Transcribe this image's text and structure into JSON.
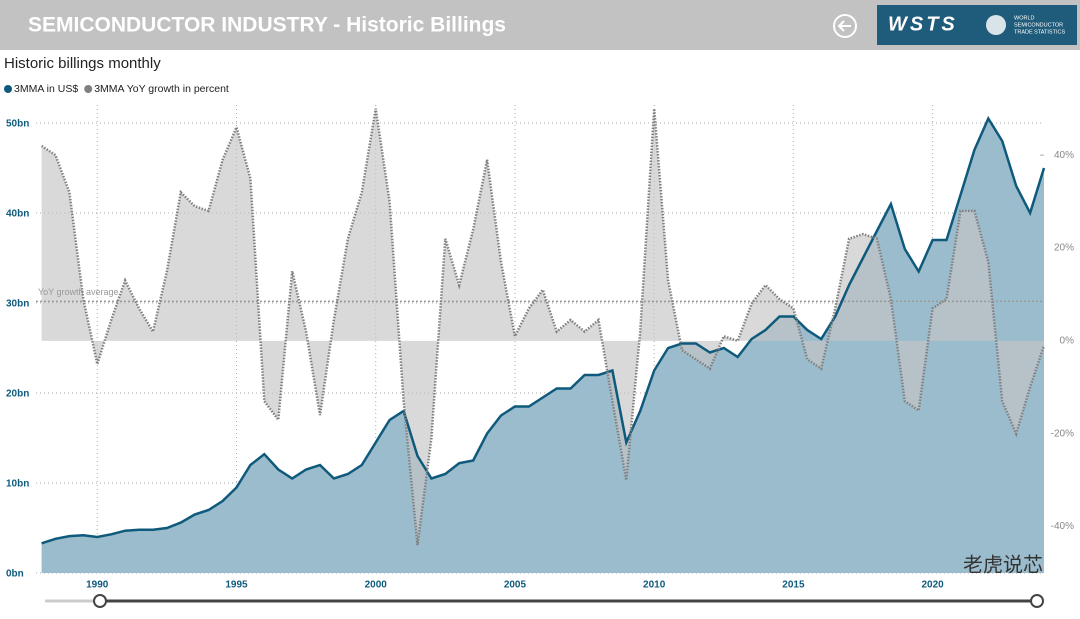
{
  "header": {
    "title": "SEMICONDUCTOR INDUSTRY - Historic Billings",
    "logo": "WSTS",
    "logo_lines": [
      "WORLD",
      "SEMICONDUCTOR",
      "TRADE STATISTICS"
    ]
  },
  "watermark": "老虎说芯",
  "chart_data": {
    "type": "area",
    "title": "Historic billings monthly",
    "x": [
      1988,
      1988.5,
      1989,
      1989.5,
      1990,
      1990.5,
      1991,
      1991.5,
      1992,
      1992.5,
      1993,
      1993.5,
      1994,
      1994.5,
      1995,
      1995.5,
      1996,
      1996.5,
      1997,
      1997.5,
      1998,
      1998.5,
      1999,
      1999.5,
      2000,
      2000.5,
      2001,
      2001.5,
      2002,
      2002.5,
      2003,
      2003.5,
      2004,
      2004.5,
      2005,
      2005.5,
      2006,
      2006.5,
      2007,
      2007.5,
      2008,
      2008.5,
      2009,
      2009.5,
      2010,
      2010.5,
      2011,
      2011.5,
      2012,
      2012.5,
      2013,
      2013.5,
      2014,
      2014.5,
      2015,
      2015.5,
      2016,
      2016.5,
      2017,
      2017.5,
      2018,
      2018.5,
      2019,
      2019.5,
      2020,
      2020.5,
      2021,
      2021.5,
      2022,
      2022.5,
      2023,
      2023.5,
      2024
    ],
    "series": [
      {
        "name": "3MMA in US$",
        "color": "#0f5a7c",
        "fill": "#9bbccc",
        "values": [
          3.3,
          3.8,
          4.1,
          4.2,
          4.0,
          4.3,
          4.7,
          4.8,
          4.8,
          5.0,
          5.6,
          6.5,
          7.0,
          8.0,
          9.5,
          12,
          13.2,
          11.5,
          10.5,
          11.5,
          12,
          10.5,
          11,
          12,
          14.5,
          17,
          18,
          13,
          10.5,
          11,
          12.2,
          12.5,
          15.5,
          17.5,
          18.5,
          18.5,
          19.5,
          20.5,
          20.5,
          22,
          22,
          22.5,
          14.5,
          18,
          22.5,
          25,
          25.5,
          25.5,
          24.5,
          25,
          24,
          26,
          27,
          28.5,
          28.5,
          27,
          26,
          28.5,
          32,
          35,
          38,
          41,
          36,
          33.5,
          37,
          37,
          42,
          47,
          50.5,
          48,
          43,
          40,
          45
        ]
      },
      {
        "name": "3MMA YoY growth in percent",
        "color": "#808080",
        "fill": "#c4c4c4",
        "axis": "y2",
        "values": [
          42,
          40,
          32,
          9,
          -5,
          4.5,
          13,
          7,
          2,
          15,
          32,
          29,
          28,
          39,
          46,
          35,
          -13,
          -17,
          15,
          2,
          -16,
          4.5,
          22,
          32,
          50,
          30,
          -13,
          -44,
          -21,
          22,
          12,
          24,
          39,
          17,
          1,
          7,
          11,
          2,
          4.5,
          2,
          4.5,
          -13,
          -30,
          2,
          50,
          13,
          -2,
          -4,
          -6,
          1,
          0,
          8,
          12,
          9,
          7,
          -4,
          -6,
          7,
          22,
          23,
          22,
          9,
          -13,
          -15,
          7,
          9,
          28,
          28,
          17,
          -13,
          -20,
          -10,
          -1
        ]
      }
    ],
    "xlim": [
      1987.8,
      2024
    ],
    "xticks": [
      1990,
      1995,
      2000,
      2005,
      2010,
      2015,
      2020
    ],
    "ylim": [
      0,
      52
    ],
    "yticks": [
      {
        "value": 0,
        "label": "0bn"
      },
      {
        "value": 10,
        "label": "10bn"
      },
      {
        "value": 20,
        "label": "20bn"
      },
      {
        "value": 30,
        "label": "30bn"
      },
      {
        "value": 40,
        "label": "40bn"
      },
      {
        "value": 50,
        "label": "50bn"
      }
    ],
    "y2lim": [
      -50,
      50.8
    ],
    "y2ticks": [
      {
        "value": -40,
        "label": "-40%"
      },
      {
        "value": -20,
        "label": "-20%"
      },
      {
        "value": 0,
        "label": "0%"
      },
      {
        "value": 20,
        "label": "20%"
      },
      {
        "value": 40,
        "label": "40%"
      }
    ],
    "average": {
      "label": "YoY growth average",
      "value": 8.5,
      "axis": "y2"
    },
    "grid": true
  }
}
